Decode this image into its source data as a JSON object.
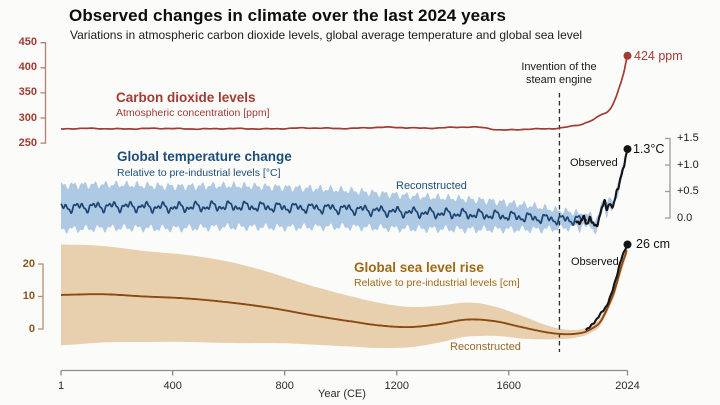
{
  "title": "Observed changes in climate over the last 2024 years",
  "subtitle": "Variations in atmospheric carbon dioxide levels, global average temperature and global sea level",
  "steam_annotation": "Invention of the steam engine",
  "panels": {
    "co2": {
      "title": "Carbon dioxide levels",
      "subtitle": "Atmospheric concentration [ppm]",
      "end_label": "424 ppm"
    },
    "temperature": {
      "title": "Global temperature change",
      "subtitle": "Relative to pre-industrial levels [°C]",
      "reconstructed_label": "Reconstructed",
      "observed_label": "Observed",
      "end_label": "1.3°C"
    },
    "sea_level": {
      "title": "Global sea level rise",
      "subtitle": "Relative to pre-industrial levels [cm]",
      "reconstructed_label": "Reconstructed",
      "observed_label": "Observed",
      "end_label": "26 cm"
    }
  },
  "axes": {
    "co2_ticks": [
      "450",
      "400",
      "350",
      "300",
      "250"
    ],
    "temp_ticks": [
      "+1.5",
      "+1.0",
      "+0.5",
      "0.0"
    ],
    "sea_ticks": [
      "20",
      "10",
      "0"
    ],
    "x_ticks": [
      "1",
      "400",
      "800",
      "1200",
      "1600",
      "2024"
    ],
    "x_label": "Year (CE)"
  },
  "colors": {
    "red": "#a23b33",
    "blue_dark": "#1d4e79",
    "blue_line": "#1b4673",
    "blue_band": "#aec9e4",
    "brown_line": "#8a4a12",
    "brown_band": "#e8cfae",
    "sea_label": "#9e6a16",
    "black": "#141414",
    "axis_gray": "#8c8c8c",
    "co2_bracket": "#b08079",
    "sea_bracket": "#b3906a",
    "temp_bracket": "#9a9a9a",
    "dash": "#2b2b2b"
  },
  "chart_data": {
    "type": "line",
    "x": {
      "label": "Year (CE)",
      "ticks": [
        1,
        400,
        800,
        1200,
        1600,
        2024
      ],
      "range": [
        1,
        2024
      ]
    },
    "annotations": [
      {
        "text": "Invention of the steam engine",
        "year": 1781,
        "style": "dashed-vline"
      }
    ],
    "panels": [
      {
        "id": "co2",
        "ylabel": "Atmospheric concentration [ppm]",
        "yticks": [
          450,
          400,
          350,
          300,
          250
        ],
        "yrange": [
          250,
          450
        ],
        "series": [
          {
            "name": "Carbon dioxide levels",
            "anchors": [
              [
                1,
                278
              ],
              [
                150,
                279
              ],
              [
                300,
                278.5
              ],
              [
                450,
                279
              ],
              [
                600,
                278.2
              ],
              [
                750,
                279
              ],
              [
                900,
                279.5
              ],
              [
                1050,
                280
              ],
              [
                1200,
                281
              ],
              [
                1350,
                280.2
              ],
              [
                1500,
                281.5
              ],
              [
                1570,
                276.8
              ],
              [
                1650,
                277
              ],
              [
                1720,
                277.8
              ],
              [
                1780,
                280
              ],
              [
                1820,
                284
              ],
              [
                1860,
                288
              ],
              [
                1900,
                296
              ],
              [
                1930,
                306
              ],
              [
                1950,
                311
              ],
              [
                1965,
                320
              ],
              [
                1980,
                338
              ],
              [
                2000,
                369
              ],
              [
                2012,
                393
              ],
              [
                2024,
                424
              ]
            ]
          }
        ],
        "end_point": {
          "year": 2024,
          "value": 424,
          "label": "424 ppm"
        }
      },
      {
        "id": "temperature",
        "ylabel": "Relative to pre-industrial levels [°C]",
        "yticks": [
          1.5,
          1.0,
          0.5,
          0.0
        ],
        "yrange": [
          0.0,
          1.5
        ],
        "series": [
          {
            "name": "Reconstructed",
            "anchors": [
              [
                1,
                0.2
              ],
              [
                200,
                0.22
              ],
              [
                400,
                0.2
              ],
              [
                600,
                0.22
              ],
              [
                800,
                0.2
              ],
              [
                1000,
                0.18
              ],
              [
                1200,
                0.12
              ],
              [
                1400,
                0.08
              ],
              [
                1550,
                0.05
              ],
              [
                1700,
                0.0
              ],
              [
                1800,
                -0.03
              ],
              [
                1880,
                -0.02
              ]
            ],
            "band_halfwidth_anchors": [
              [
                1,
                0.42
              ],
              [
                400,
                0.4
              ],
              [
                800,
                0.38
              ],
              [
                1200,
                0.32
              ],
              [
                1500,
                0.28
              ],
              [
                1700,
                0.22
              ],
              [
                1800,
                0.16
              ],
              [
                1880,
                0.12
              ],
              [
                1950,
                0.1
              ],
              [
                2016,
                0.09
              ]
            ]
          },
          {
            "name": "Observed",
            "anchors": [
              [
                1840,
                -0.02
              ],
              [
                1852,
                -0.12
              ],
              [
                1865,
                0.02
              ],
              [
                1878,
                -0.1
              ],
              [
                1890,
                -0.02
              ],
              [
                1900,
                -0.08
              ],
              [
                1910,
                -0.16
              ],
              [
                1922,
                -0.03
              ],
              [
                1932,
                0.18
              ],
              [
                1941,
                0.32
              ],
              [
                1950,
                0.16
              ],
              [
                1958,
                0.28
              ],
              [
                1966,
                0.2
              ],
              [
                1976,
                0.3
              ],
              [
                1986,
                0.5
              ],
              [
                1996,
                0.68
              ],
              [
                2006,
                0.88
              ],
              [
                2016,
                1.1
              ],
              [
                2020,
                1.2
              ],
              [
                2024,
                1.3
              ]
            ]
          }
        ],
        "end_point": {
          "year": 2024,
          "value": 1.3,
          "label": "1.3°C"
        }
      },
      {
        "id": "sea_level",
        "ylabel": "Relative to pre-industrial levels [cm]",
        "yticks": [
          20,
          10,
          0
        ],
        "yrange": [
          0,
          20
        ],
        "series": [
          {
            "name": "Reconstructed",
            "anchors": [
              [
                1,
                10.5
              ],
              [
                150,
                10.7
              ],
              [
                300,
                10.0
              ],
              [
                450,
                9.4
              ],
              [
                600,
                8.2
              ],
              [
                750,
                6.5
              ],
              [
                900,
                4.2
              ],
              [
                1050,
                2.2
              ],
              [
                1150,
                1.0
              ],
              [
                1250,
                0.6
              ],
              [
                1350,
                1.5
              ],
              [
                1450,
                2.9
              ],
              [
                1550,
                2.4
              ],
              [
                1650,
                0.5
              ],
              [
                1750,
                -1.2
              ],
              [
                1820,
                -1.6
              ],
              [
                1870,
                -1.0
              ],
              [
                1900,
                0.3
              ],
              [
                1925,
                2.0
              ],
              [
                1950,
                6.0
              ],
              [
                1975,
                11.0
              ],
              [
                1990,
                15.5
              ],
              [
                2005,
                20.0
              ],
              [
                2015,
                22.5
              ],
              [
                2024,
                24.8
              ]
            ],
            "band_halfwidth_anchors": [
              [
                1,
                15.5
              ],
              [
                300,
                14
              ],
              [
                600,
                12.5
              ],
              [
                900,
                9
              ],
              [
                1200,
                6.5
              ],
              [
                1500,
                5
              ],
              [
                1650,
                3.5
              ],
              [
                1750,
                2
              ],
              [
                1820,
                1.3
              ],
              [
                1880,
                1.1
              ],
              [
                1950,
                1.3
              ],
              [
                2000,
                1.8
              ],
              [
                2024,
                1.5
              ]
            ]
          },
          {
            "name": "Observed",
            "anchors": [
              [
                1875,
                -0.3
              ],
              [
                1890,
                0.8
              ],
              [
                1910,
                2.5
              ],
              [
                1930,
                5.0
              ],
              [
                1950,
                7.2
              ],
              [
                1970,
                11.8
              ],
              [
                1988,
                17.0
              ],
              [
                2003,
                21.8
              ],
              [
                2014,
                24.0
              ],
              [
                2019,
                25.0
              ],
              [
                2024,
                26.0
              ]
            ]
          }
        ],
        "end_point": {
          "year": 2024,
          "value": 26,
          "label": "26 cm"
        }
      }
    ]
  }
}
